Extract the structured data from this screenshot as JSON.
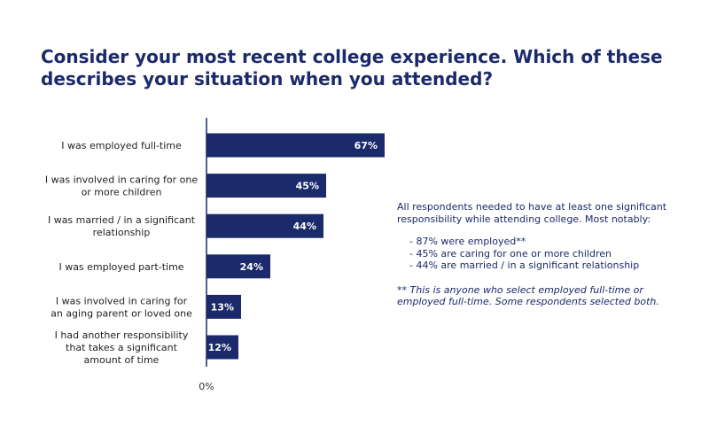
{
  "title": {
    "line1": "Consider your most recent college experience. Which of these",
    "line2": "describes your situation when you attended?"
  },
  "chart_data": {
    "type": "bar",
    "orientation": "horizontal",
    "categories": [
      [
        "I was employed full-time"
      ],
      [
        "I was involved in caring for one",
        "or more children"
      ],
      [
        "I was married / in a significant",
        "relationship"
      ],
      [
        "I was employed part-time"
      ],
      [
        "I was involved in caring for",
        "an aging parent or loved one"
      ],
      [
        "I had another responsibility",
        "that takes a significant",
        "amount of time"
      ]
    ],
    "values": [
      67,
      45,
      44,
      24,
      13,
      12
    ],
    "value_labels": [
      "67%",
      "45%",
      "44%",
      "24%",
      "13%",
      "12%"
    ],
    "axis_tick_label": "0%",
    "xlim": [
      0,
      100
    ],
    "bar_color": "#1b2a6b",
    "grid": false
  },
  "notes": {
    "intro": "All respondents needed to have at least one significant responsibility while attending college. Most notably:",
    "bullets": [
      "- 87% were employed**",
      "- 45% are caring for one or more children",
      "- 44% are married / in a significant relationship"
    ],
    "footnote": "** This is anyone who select employed full-time or employed full-time. Some respondents selected both."
  }
}
